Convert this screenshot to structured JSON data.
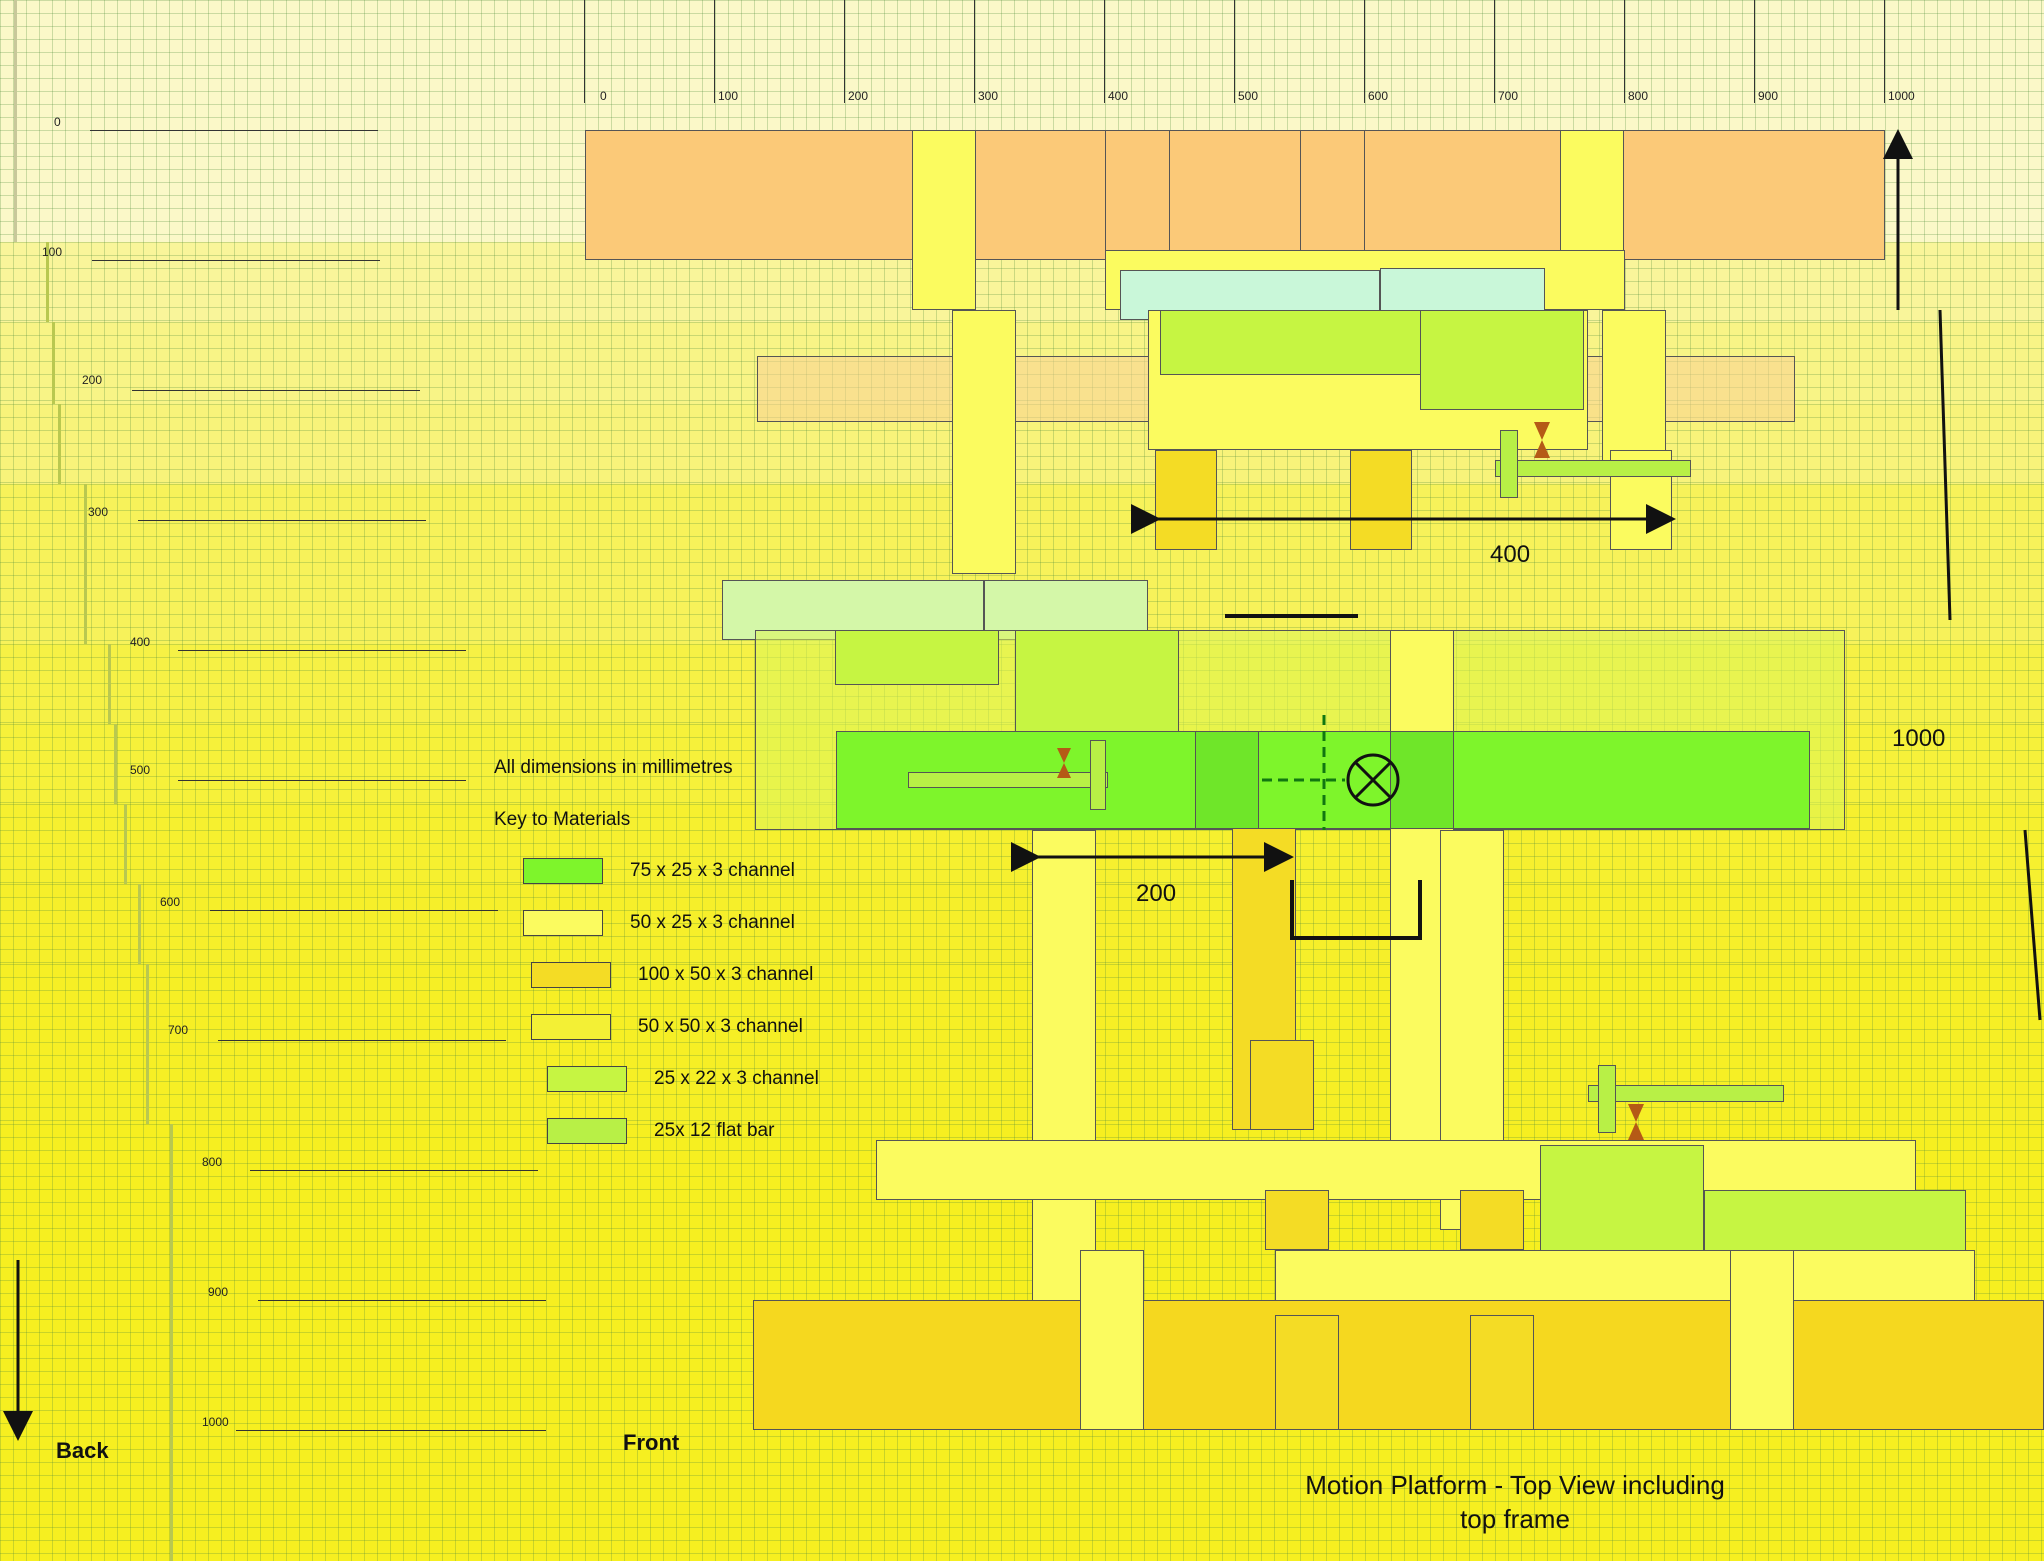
{
  "title": {
    "line1": "Motion Platform - Top View including",
    "line2": "top frame"
  },
  "dimensions_note": "All dimensions in millimetres",
  "key_title": "Key to Materials",
  "key": [
    {
      "label": "75 x 25 x 3 channel",
      "color": "#7ef52b"
    },
    {
      "label": "50 x 25 x 3 channel",
      "color": "#fbfb5f"
    },
    {
      "label": "100 x 50 x 3 channel",
      "color": "#f4dc25"
    },
    {
      "label": "50 x 50 x 3 channel",
      "color": "#f3f035"
    },
    {
      "label": "25 x 22 x 3 channel",
      "color": "#c6f542"
    },
    {
      "label": "25x 12 flat bar",
      "color": "#b8f046"
    }
  ],
  "ruler_top": [
    "0",
    "100",
    "200",
    "300",
    "400",
    "500",
    "600",
    "700",
    "800",
    "900",
    "1000"
  ],
  "ruler_left": [
    "0",
    "100",
    "200",
    "300",
    "400",
    "500",
    "600",
    "700",
    "800",
    "900",
    "1000"
  ],
  "dims": {
    "width_400": "400",
    "width_200": "200",
    "length_1000": "1000"
  },
  "labels": {
    "back": "Back",
    "front": "Front"
  }
}
